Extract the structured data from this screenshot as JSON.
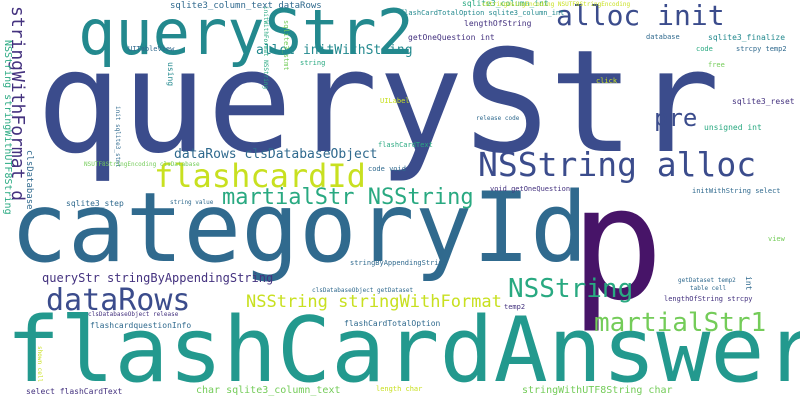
{
  "palette": {
    "indigo": "#44327f",
    "navy": "#3b4c8c",
    "blue": "#306a8e",
    "teal": "#23898e",
    "green": "#29a981",
    "lime": "#74cc59",
    "yellow": "#c8e020",
    "purple": "#471468"
  },
  "words": [
    "queryStr",
    "categoryId",
    "flashCardAnswer",
    "p",
    "queryStr2",
    "alloc init",
    "NSString alloc",
    "flashcardId",
    "martialStr NSString",
    "dataRows",
    "NSString",
    "martialStr1",
    "pre",
    "NSString stringWithFormat",
    "queryStr stringByAppendingString",
    "dataRows clsDatabaseObject",
    "alloc initWithString",
    "stringWithFormat d",
    "NSString stringWithUTF8String",
    "sqlite3_column_text dataRows",
    "sqlite3_column_int",
    "flashCardTotalOption sqlite3_column_int",
    "lengthOfString",
    "getOneQuestion int",
    "database",
    "sqlite3_finalize",
    "sqlite3_reset",
    "sqlite3_step",
    "UITableView",
    "UILabel",
    "release code",
    "unsigned int",
    "click",
    "code",
    "strcpy temp2",
    "flashCardText",
    "code void",
    "void getOneQuestion",
    "initWithString select",
    "view",
    "getDataset temp2",
    "table cell",
    "lengthOfString strcpy",
    "temp2",
    "int",
    "stringByAppendingString",
    "clsDatabaseObject getDataset",
    "flashcardquestionInfo",
    "flashCardTotalOption",
    "clsDatabaseObject release",
    "select flashCardText",
    "char sqlite3_column_text",
    "length char",
    "stringWithUTF8String char",
    "NSUTF8StringEncoding clsDatabase",
    "clsDatabase",
    "string value",
    "cStringUsingEncoding NSUTF8StringEncoding",
    "string",
    "using",
    "init sqlite3_stmt",
    "sqlite3_stmt",
    "initWithFormat NSString",
    "free",
    "shown cell"
  ]
}
